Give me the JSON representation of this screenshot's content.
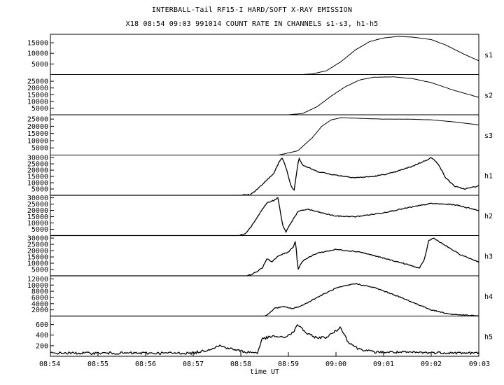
{
  "header": {
    "title": "INTERBALL-Tail RF15-I HARD/SOFT X-RAY EMISSION",
    "subtitle": "X18  08:54 09:03 991014  COUNT RATE IN CHANNELS s1-s3, h1-h5"
  },
  "chart_data": {
    "type": "line",
    "xlabel": "time UT",
    "x_ticks": [
      "08:54",
      "08:55",
      "08:56",
      "08:57",
      "08:58",
      "08:59",
      "09:00",
      "09:01",
      "09:02",
      "09:03"
    ],
    "x_minutes": [
      0,
      9
    ],
    "grid": false,
    "panels": [
      {
        "name": "s1",
        "yticks": [
          5000,
          10000,
          15000
        ],
        "ylim": [
          0,
          19000
        ],
        "points": [
          [
            0,
            0
          ],
          [
            5.3,
            0
          ],
          [
            5.5,
            300
          ],
          [
            5.8,
            1800
          ],
          [
            6.1,
            6000
          ],
          [
            6.4,
            11500
          ],
          [
            6.7,
            15500
          ],
          [
            7.0,
            17300
          ],
          [
            7.3,
            18000
          ],
          [
            7.6,
            17700
          ],
          [
            8.0,
            16500
          ],
          [
            8.3,
            14000
          ],
          [
            8.7,
            9500
          ],
          [
            9.0,
            6500
          ]
        ]
      },
      {
        "name": "s2",
        "yticks": [
          5000,
          10000,
          15000,
          20000,
          25000
        ],
        "ylim": [
          0,
          30000
        ],
        "points": [
          [
            0,
            0
          ],
          [
            5.0,
            0
          ],
          [
            5.3,
            1000
          ],
          [
            5.6,
            6000
          ],
          [
            5.9,
            14000
          ],
          [
            6.2,
            21000
          ],
          [
            6.5,
            26000
          ],
          [
            6.8,
            28000
          ],
          [
            7.2,
            28300
          ],
          [
            7.6,
            27000
          ],
          [
            8.0,
            24000
          ],
          [
            8.5,
            18000
          ],
          [
            9.0,
            13000
          ]
        ]
      },
      {
        "name": "s3",
        "yticks": [
          5000,
          10000,
          15000,
          20000,
          25000
        ],
        "ylim": [
          0,
          28000
        ],
        "points": [
          [
            0,
            0
          ],
          [
            4.8,
            0
          ],
          [
            5.2,
            3000
          ],
          [
            5.5,
            12000
          ],
          [
            5.7,
            20000
          ],
          [
            5.9,
            24500
          ],
          [
            6.1,
            26000
          ],
          [
            6.5,
            25500
          ],
          [
            7.0,
            25000
          ],
          [
            7.5,
            25000
          ],
          [
            8.0,
            24500
          ],
          [
            8.5,
            23000
          ],
          [
            9.0,
            21000
          ]
        ]
      },
      {
        "name": "h1",
        "yticks": [
          5000,
          10000,
          15000,
          20000,
          25000,
          30000
        ],
        "ylim": [
          0,
          32000
        ],
        "points": [
          [
            0,
            0
          ],
          [
            3.9,
            0
          ],
          [
            4.2,
            500
          ],
          [
            4.35,
            5000
          ],
          [
            4.55,
            12000
          ],
          [
            4.7,
            18000
          ],
          [
            4.8,
            26000
          ],
          [
            4.87,
            30000
          ],
          [
            4.95,
            22000
          ],
          [
            5.05,
            8000
          ],
          [
            5.12,
            4000
          ],
          [
            5.18,
            20000
          ],
          [
            5.22,
            30000
          ],
          [
            5.3,
            24000
          ],
          [
            5.6,
            19000
          ],
          [
            6.0,
            16000
          ],
          [
            6.4,
            14000
          ],
          [
            6.8,
            15000
          ],
          [
            7.2,
            18000
          ],
          [
            7.6,
            23000
          ],
          [
            7.9,
            28000
          ],
          [
            8.0,
            30000
          ],
          [
            8.15,
            25000
          ],
          [
            8.3,
            14000
          ],
          [
            8.5,
            7000
          ],
          [
            8.7,
            5000
          ],
          [
            9.0,
            7500
          ]
        ]
      },
      {
        "name": "h2",
        "yticks": [
          5000,
          10000,
          15000,
          20000,
          25000,
          30000
        ],
        "ylim": [
          0,
          32000
        ],
        "points": [
          [
            0,
            0
          ],
          [
            3.95,
            0
          ],
          [
            4.1,
            1500
          ],
          [
            4.25,
            9000
          ],
          [
            4.4,
            18000
          ],
          [
            4.55,
            26000
          ],
          [
            4.7,
            28000
          ],
          [
            4.78,
            30000
          ],
          [
            4.88,
            8000
          ],
          [
            4.95,
            3000
          ],
          [
            5.05,
            10000
          ],
          [
            5.2,
            19000
          ],
          [
            5.4,
            21000
          ],
          [
            5.7,
            18000
          ],
          [
            6.0,
            15500
          ],
          [
            6.4,
            15000
          ],
          [
            6.9,
            17500
          ],
          [
            7.5,
            22000
          ],
          [
            8.0,
            25500
          ],
          [
            8.5,
            24500
          ],
          [
            9.0,
            20000
          ]
        ]
      },
      {
        "name": "h3",
        "yticks": [
          5000,
          10000,
          15000,
          20000,
          25000,
          30000
        ],
        "ylim": [
          0,
          32000
        ],
        "points": [
          [
            0,
            0
          ],
          [
            4.15,
            0
          ],
          [
            4.3,
            2500
          ],
          [
            4.45,
            6000
          ],
          [
            4.55,
            14000
          ],
          [
            4.65,
            11000
          ],
          [
            4.8,
            16000
          ],
          [
            5.0,
            19000
          ],
          [
            5.1,
            23000
          ],
          [
            5.15,
            28000
          ],
          [
            5.2,
            5000
          ],
          [
            5.3,
            12000
          ],
          [
            5.6,
            18000
          ],
          [
            6.0,
            21000
          ],
          [
            6.5,
            19000
          ],
          [
            7.0,
            14000
          ],
          [
            7.5,
            9000
          ],
          [
            7.75,
            6000
          ],
          [
            7.85,
            12000
          ],
          [
            7.95,
            28000
          ],
          [
            8.05,
            30000
          ],
          [
            8.3,
            24000
          ],
          [
            8.6,
            17000
          ],
          [
            9.0,
            11000
          ]
        ]
      },
      {
        "name": "h4",
        "yticks": [
          2000,
          4000,
          6000,
          8000,
          10000,
          12000
        ],
        "ylim": [
          0,
          13000
        ],
        "points": [
          [
            0,
            0
          ],
          [
            4.5,
            0
          ],
          [
            4.6,
            800
          ],
          [
            4.7,
            2500
          ],
          [
            4.9,
            3000
          ],
          [
            5.1,
            2400
          ],
          [
            5.3,
            3500
          ],
          [
            5.6,
            6000
          ],
          [
            6.0,
            9000
          ],
          [
            6.4,
            10500
          ],
          [
            6.8,
            9200
          ],
          [
            7.2,
            7000
          ],
          [
            7.6,
            4500
          ],
          [
            8.0,
            2000
          ],
          [
            8.4,
            600
          ],
          [
            9.0,
            0
          ]
        ]
      },
      {
        "name": "h5",
        "yticks": [
          200,
          400,
          600
        ],
        "ylim": [
          0,
          760
        ],
        "points": [
          [
            0,
            60
          ],
          [
            3.0,
            60
          ],
          [
            3.3,
            120
          ],
          [
            3.55,
            200
          ],
          [
            3.8,
            140
          ],
          [
            4.1,
            80
          ],
          [
            4.35,
            70
          ],
          [
            4.45,
            330
          ],
          [
            4.7,
            380
          ],
          [
            4.9,
            350
          ],
          [
            5.1,
            450
          ],
          [
            5.2,
            600
          ],
          [
            5.4,
            420
          ],
          [
            5.6,
            350
          ],
          [
            5.8,
            360
          ],
          [
            6.0,
            480
          ],
          [
            6.1,
            550
          ],
          [
            6.25,
            280
          ],
          [
            6.45,
            150
          ],
          [
            6.8,
            80
          ],
          [
            9.0,
            60
          ]
        ]
      }
    ]
  }
}
